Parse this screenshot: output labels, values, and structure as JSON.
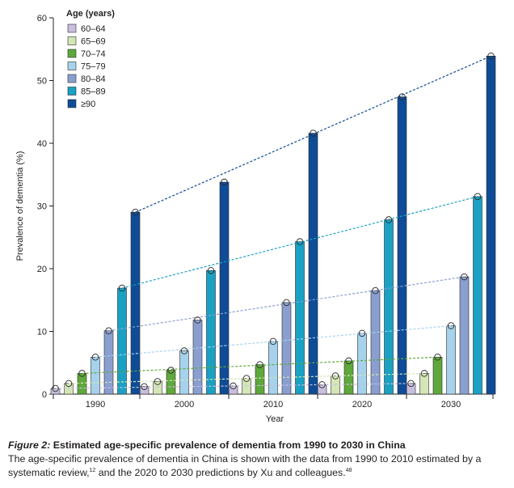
{
  "chart_data": {
    "type": "bar",
    "categories": [
      "1990",
      "2000",
      "2010",
      "2020",
      "2030"
    ],
    "xlabel": "Year",
    "ylabel": "Prevalence of dementia (%)",
    "ylim": [
      0,
      60
    ],
    "yticks": [
      0,
      10,
      20,
      30,
      40,
      50,
      60
    ],
    "legend_title": "Age (years)",
    "legend_position": "top-left",
    "trend_lines": true,
    "series": [
      {
        "name": "60–64",
        "color": "#c8bfde",
        "values": [
          0.9,
          1.2,
          1.3,
          1.5,
          1.7
        ]
      },
      {
        "name": "65–69",
        "color": "#d4e6b6",
        "values": [
          1.7,
          2.0,
          2.5,
          2.9,
          3.3
        ]
      },
      {
        "name": "70–74",
        "color": "#5fa83c",
        "values": [
          3.3,
          3.8,
          4.7,
          5.3,
          5.9
        ]
      },
      {
        "name": "75–79",
        "color": "#a6d2ec",
        "values": [
          5.9,
          6.9,
          8.4,
          9.7,
          10.9
        ]
      },
      {
        "name": "80–84",
        "color": "#8a9fd0",
        "values": [
          10.1,
          11.8,
          14.6,
          16.5,
          18.7
        ]
      },
      {
        "name": "85–89",
        "color": "#1aa1c4",
        "values": [
          16.9,
          19.7,
          24.3,
          27.8,
          31.5
        ]
      },
      {
        "name": "≥90",
        "color": "#0f4c97",
        "values": [
          29.0,
          33.8,
          41.6,
          47.4,
          53.9
        ]
      }
    ]
  },
  "caption": {
    "figure_label": "Figure 2:",
    "title": " Estimated age-specific prevalence of dementia from 1990 to 2030 in China",
    "text_part1": "The age-specific prevalence of dementia in China is shown with the data from 1990 to 2010 estimated by a systematic review,",
    "ref1": "12",
    "text_part2": " and the 2020 to 2030 predictions by Xu and colleagues.",
    "ref2": "48"
  }
}
